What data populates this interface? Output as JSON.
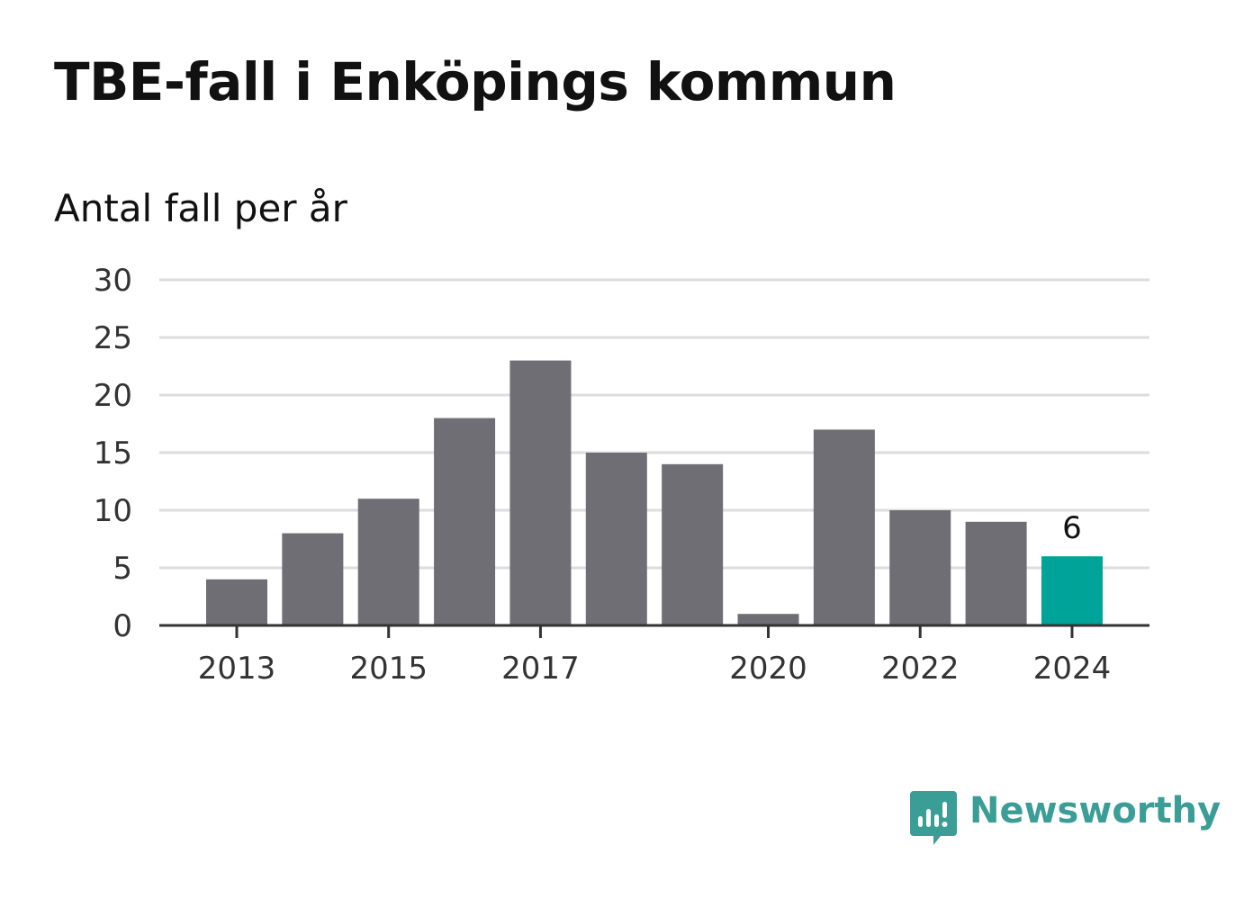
{
  "chart_data": {
    "type": "bar",
    "title": "TBE-fall i Enköpings kommun",
    "subtitle": "Antal fall per år",
    "categories": [
      2013,
      2014,
      2015,
      2016,
      2017,
      2018,
      2019,
      2020,
      2021,
      2022,
      2023,
      2024
    ],
    "values": [
      4,
      8,
      11,
      18,
      23,
      15,
      14,
      1,
      17,
      10,
      9,
      6
    ],
    "xticks": [
      "2013",
      "2015",
      "2017",
      "2020",
      "2022",
      "2024"
    ],
    "yticks": [
      "0",
      "5",
      "10",
      "15",
      "20",
      "25",
      "30"
    ],
    "ylim": [
      0,
      30
    ],
    "grid": true,
    "bar_color": "#6f6e74",
    "highlight_color": "#00a397",
    "highlight_category": 2024,
    "data_labels": [
      {
        "category": 2024,
        "text": "6"
      }
    ]
  },
  "brand": {
    "name": "Newsworthy",
    "color": "#3a9d96",
    "icon": "newsworthy-logo-icon"
  }
}
